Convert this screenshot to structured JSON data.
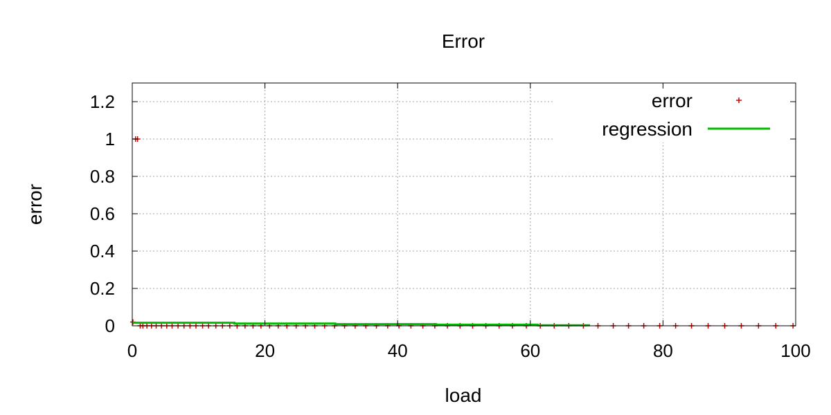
{
  "chart_data": {
    "type": "scatter",
    "title": "Error",
    "xlabel": "load",
    "ylabel": "error",
    "xlim": [
      0,
      100
    ],
    "ylim": [
      0,
      1.3
    ],
    "x_ticks": [
      0,
      20,
      40,
      60,
      80,
      100
    ],
    "y_ticks": [
      0,
      0.2,
      0.4,
      0.6,
      0.8,
      1,
      1.2
    ],
    "x_tick_labels": [
      "0",
      "20",
      "40",
      "60",
      "80",
      "100"
    ],
    "y_tick_labels": [
      "0",
      "0.2",
      "0.4",
      "0.6",
      "0.8",
      "1",
      "1.2"
    ],
    "grid": true,
    "legend_position": "top-right",
    "series": [
      {
        "name": "error",
        "kind": "points",
        "marker": "plus",
        "color": "#cc0000",
        "x": [
          0.1,
          0.5,
          0.8,
          1.2,
          1.6,
          2.2,
          2.9,
          3.6,
          4.4,
          5.2,
          6.0,
          6.9,
          7.8,
          8.7,
          9.6,
          10.6,
          11.5,
          12.6,
          13.6,
          14.7,
          15.8,
          17.0,
          18.2,
          19.4,
          20.7,
          22.0,
          23.3,
          24.7,
          26.1,
          27.5,
          29.0,
          30.5,
          32.0,
          33.6,
          35.2,
          36.8,
          38.5,
          40.2,
          42.0,
          43.8,
          45.6,
          47.5,
          49.4,
          51.3,
          53.3,
          55.3,
          57.3,
          59.4,
          61.5,
          63.6,
          65.8,
          68.0,
          70.2,
          72.5,
          74.8,
          77.1,
          79.5,
          81.9,
          84.3,
          86.8,
          89.3,
          91.8,
          94.4,
          97.0,
          99.6
        ],
        "y": [
          0.02,
          1.0,
          1.0,
          0.0,
          0.0,
          0.0,
          0.0,
          0.0,
          0.0,
          0.0,
          0.0,
          0.0,
          0.0,
          0.0,
          0.0,
          0.0,
          0.0,
          0.0,
          0.0,
          0.0,
          0.0,
          0.0,
          0.0,
          0.0,
          0.0,
          0.0,
          0.0,
          0.0,
          0.0,
          0.0,
          0.0,
          0.0,
          0.0,
          0.0,
          0.0,
          0.0,
          0.0,
          0.0,
          0.0,
          0.0,
          0.0,
          0.0,
          0.0,
          0.0,
          0.0,
          0.0,
          0.0,
          0.0,
          0.0,
          0.0,
          0.0,
          0.0,
          0.0,
          0.0,
          0.0,
          0.0,
          0.0,
          0.0,
          0.0,
          0.0,
          0.0,
          0.0,
          0.0,
          0.0,
          0.0
        ]
      },
      {
        "name": "regression",
        "kind": "line",
        "color": "#00bb00",
        "x": [
          0,
          0.4,
          15.4,
          15.4,
          30.6,
          30.6,
          45.8,
          45.8,
          61.1,
          61.1,
          69.0
        ],
        "y": [
          0.018,
          0.016,
          0.016,
          0.012,
          0.012,
          0.009,
          0.009,
          0.006,
          0.006,
          0.003,
          0.003
        ]
      }
    ]
  }
}
